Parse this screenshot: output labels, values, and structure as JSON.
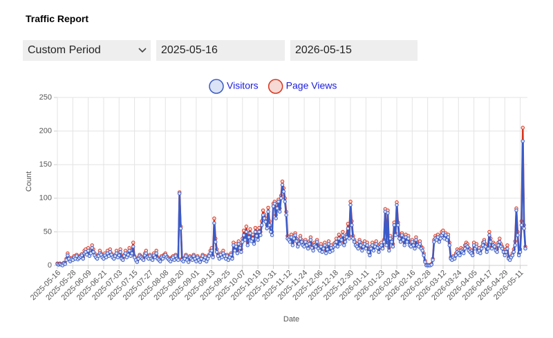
{
  "title": "Traffic Report",
  "form": {
    "period": "Custom Period",
    "start": "2025-05-16",
    "end": "2026-05-15"
  },
  "chart_data": {
    "type": "line",
    "x_label": "Date",
    "y_label": "Count",
    "ylim": [
      0,
      250
    ],
    "yticks": [
      0,
      50,
      100,
      150,
      200,
      250
    ],
    "grid": true,
    "legend": "top",
    "categories": [
      "2025-05-16",
      null,
      null,
      null,
      null,
      null,
      null,
      null,
      null,
      null,
      null,
      null,
      "2025-05-28",
      null,
      null,
      null,
      null,
      null,
      null,
      null,
      null,
      null,
      null,
      null,
      "2025-06-09",
      null,
      null,
      null,
      null,
      null,
      null,
      null,
      null,
      null,
      null,
      null,
      "2025-06-21",
      null,
      null,
      null,
      null,
      null,
      null,
      null,
      null,
      null,
      null,
      null,
      "2025-07-03",
      null,
      null,
      null,
      null,
      null,
      null,
      null,
      null,
      null,
      null,
      null,
      "2025-07-15",
      null,
      null,
      null,
      null,
      null,
      null,
      null,
      null,
      null,
      null,
      null,
      "2025-07-27",
      null,
      null,
      null,
      null,
      null,
      null,
      null,
      null,
      null,
      null,
      null,
      "2025-08-08",
      null,
      null,
      null,
      null,
      null,
      null,
      null,
      null,
      null,
      null,
      null,
      "2025-08-20",
      null,
      null,
      null,
      null,
      null,
      null,
      null,
      null,
      null,
      null,
      null,
      "2025-09-01",
      null,
      null,
      null,
      null,
      null,
      null,
      null,
      null,
      null,
      null,
      null,
      "2025-09-13",
      null,
      null,
      null,
      null,
      null,
      null,
      null,
      null,
      null,
      null,
      null,
      "2025-09-25",
      null,
      null,
      null,
      null,
      null,
      null,
      null,
      null,
      null,
      null,
      null,
      "2025-10-07",
      null,
      null,
      null,
      null,
      null,
      null,
      null,
      null,
      null,
      null,
      null,
      "2025-10-19",
      null,
      null,
      null,
      null,
      null,
      null,
      null,
      null,
      null,
      null,
      null,
      "2025-10-31",
      null,
      null,
      null,
      null,
      null,
      null,
      null,
      null,
      null,
      null,
      null,
      "2025-11-12",
      null,
      null,
      null,
      null,
      null,
      null,
      null,
      null,
      null,
      null,
      null,
      "2025-11-24",
      null,
      null,
      null,
      null,
      null,
      null,
      null,
      null,
      null,
      null,
      null,
      "2025-12-06",
      null,
      null,
      null,
      null,
      null,
      null,
      null,
      null,
      null,
      null,
      null,
      "2025-12-18",
      null,
      null,
      null,
      null,
      null,
      null,
      null,
      null,
      null,
      null,
      null,
      "2025-12-30",
      null,
      null,
      null,
      null,
      null,
      null,
      null,
      null,
      null,
      null,
      null,
      "2026-01-11",
      null,
      null,
      null,
      null,
      null,
      null,
      null,
      null,
      null,
      null,
      null,
      "2026-01-23",
      null,
      null,
      null,
      null,
      null,
      null,
      null,
      null,
      null,
      null,
      null,
      "2026-02-04",
      null,
      null,
      null,
      null,
      null,
      null,
      null,
      null,
      null,
      null,
      null,
      "2026-02-16",
      null,
      null,
      null,
      null,
      null,
      null,
      null,
      null,
      null,
      null,
      null,
      "2026-02-28",
      null,
      null,
      null,
      null,
      null,
      null,
      null,
      null,
      null,
      null,
      null,
      "2026-03-12",
      null,
      null,
      null,
      null,
      null,
      null,
      null,
      null,
      null,
      null,
      null,
      "2026-03-24",
      null,
      null,
      null,
      null,
      null,
      null,
      null,
      null,
      null,
      null,
      null,
      "2026-04-05",
      null,
      null,
      null,
      null,
      null,
      null,
      null,
      null,
      null,
      null,
      null,
      "2026-04-17",
      null,
      null,
      null,
      null,
      null,
      null,
      null,
      null,
      null,
      null,
      null,
      "2026-04-29",
      null,
      null,
      null,
      null,
      null,
      null,
      null,
      null,
      null,
      null,
      null,
      "2026-05-11",
      null,
      null,
      null,
      null
    ],
    "series": [
      {
        "name": "Page Views",
        "color": "#d9351f",
        "fill": "#f6d9d4",
        "values": [
          3,
          2,
          3,
          2,
          1,
          4,
          3,
          10,
          18,
          12,
          8,
          11,
          10,
          14,
          12,
          16,
          11,
          13,
          15,
          17,
          12,
          22,
          24,
          20,
          26,
          16,
          22,
          30,
          24,
          18,
          14,
          12,
          16,
          22,
          18,
          14,
          12,
          18,
          14,
          22,
          16,
          24,
          18,
          14,
          12,
          16,
          22,
          14,
          18,
          24,
          12,
          10,
          16,
          22,
          14,
          18,
          26,
          16,
          22,
          34,
          14,
          10,
          7,
          12,
          16,
          14,
          12,
          10,
          18,
          22,
          14,
          12,
          16,
          12,
          10,
          18,
          14,
          22,
          12,
          10,
          8,
          14,
          12,
          16,
          18,
          14,
          12,
          10,
          8,
          12,
          14,
          10,
          16,
          12,
          10,
          109,
          58,
          10,
          8,
          12,
          16,
          10,
          7,
          14,
          12,
          10,
          16,
          12,
          8,
          14,
          10,
          7,
          12,
          16,
          10,
          14,
          8,
          12,
          16,
          22,
          26,
          14,
          70,
          40,
          24,
          16,
          12,
          18,
          14,
          22,
          16,
          12,
          16,
          10,
          14,
          18,
          12,
          34,
          26,
          32,
          22,
          36,
          30,
          24,
          40,
          52,
          44,
          58,
          34,
          48,
          54,
          40,
          46,
          36,
          56,
          50,
          42,
          56,
          50,
          66,
          82,
          76,
          70,
          60,
          86,
          66,
          55,
          50,
          92,
          95,
          75,
          90,
          98,
          85,
          104,
          125,
          115,
          100,
          80,
          44,
          42,
          38,
          46,
          34,
          44,
          48,
          40,
          32,
          36,
          44,
          38,
          34,
          32,
          38,
          34,
          28,
          36,
          42,
          30,
          26,
          34,
          32,
          38,
          28,
          26,
          32,
          24,
          28,
          34,
          22,
          28,
          36,
          24,
          30,
          26,
          32,
          34,
          40,
          32,
          46,
          36,
          42,
          50,
          34,
          40,
          46,
          62,
          44,
          95,
          66,
          44,
          38,
          34,
          32,
          28,
          38,
          34,
          26,
          32,
          36,
          28,
          34,
          24,
          18,
          28,
          34,
          26,
          32,
          36,
          30,
          24,
          32,
          34,
          28,
          38,
          84,
          34,
          82,
          26,
          44,
          38,
          32,
          64,
          48,
          94,
          64,
          44,
          38,
          48,
          42,
          34,
          46,
          38,
          44,
          34,
          32,
          38,
          34,
          28,
          42,
          34,
          32,
          36,
          28,
          26,
          18,
          7,
          1,
          1,
          0,
          1,
          2,
          10,
          38,
          44,
          42,
          46,
          38,
          44,
          50,
          52,
          44,
          48,
          42,
          46,
          34,
          12,
          10,
          14,
          12,
          18,
          24,
          22,
          18,
          26,
          24,
          22,
          30,
          34,
          32,
          26,
          24,
          22,
          18,
          34,
          28,
          32,
          24,
          26,
          22,
          28,
          34,
          38,
          32,
          24,
          28,
          50,
          40,
          28,
          34,
          32,
          26,
          24,
          34,
          40,
          32,
          28,
          24,
          18,
          24,
          30,
          12,
          10,
          14,
          18,
          24,
          36,
          85,
          50,
          18,
          24,
          66,
          205,
          60,
          28
        ]
      },
      {
        "name": "Visitors",
        "color": "#3a5bc7",
        "fill": "#dbe3f6",
        "values": [
          2,
          1,
          2,
          1,
          0,
          3,
          2,
          8,
          15,
          10,
          6,
          9,
          8,
          12,
          10,
          14,
          9,
          11,
          13,
          15,
          10,
          18,
          20,
          16,
          22,
          14,
          18,
          26,
          20,
          15,
          12,
          10,
          14,
          18,
          16,
          12,
          10,
          15,
          12,
          18,
          14,
          20,
          16,
          12,
          10,
          14,
          18,
          12,
          15,
          20,
          10,
          8,
          14,
          18,
          12,
          16,
          22,
          14,
          18,
          28,
          12,
          8,
          5,
          10,
          14,
          12,
          10,
          8,
          15,
          18,
          12,
          10,
          14,
          10,
          8,
          15,
          12,
          18,
          10,
          8,
          6,
          12,
          10,
          14,
          16,
          12,
          10,
          8,
          6,
          10,
          12,
          8,
          14,
          10,
          8,
          107,
          55,
          8,
          6,
          10,
          14,
          8,
          5,
          12,
          10,
          8,
          14,
          10,
          6,
          12,
          8,
          5,
          10,
          14,
          8,
          12,
          6,
          10,
          14,
          18,
          22,
          12,
          63,
          35,
          20,
          14,
          10,
          16,
          12,
          18,
          14,
          10,
          14,
          8,
          12,
          16,
          10,
          30,
          22,
          28,
          18,
          32,
          26,
          20,
          35,
          45,
          38,
          50,
          30,
          42,
          48,
          36,
          40,
          32,
          50,
          44,
          38,
          50,
          45,
          60,
          75,
          70,
          65,
          55,
          80,
          60,
          50,
          45,
          88,
          92,
          70,
          85,
          95,
          80,
          100,
          120,
          110,
          95,
          75,
          40,
          38,
          35,
          42,
          30,
          40,
          45,
          36,
          28,
          32,
          40,
          35,
          30,
          28,
          35,
          30,
          25,
          32,
          38,
          26,
          22,
          30,
          28,
          35,
          25,
          22,
          28,
          20,
          25,
          30,
          18,
          24,
          32,
          20,
          26,
          22,
          28,
          30,
          35,
          28,
          40,
          32,
          38,
          45,
          30,
          35,
          42,
          55,
          40,
          90,
          60,
          40,
          35,
          30,
          28,
          25,
          35,
          30,
          22,
          28,
          32,
          25,
          30,
          20,
          15,
          25,
          30,
          22,
          28,
          32,
          26,
          20,
          28,
          30,
          25,
          35,
          80,
          30,
          78,
          22,
          40,
          35,
          28,
          60,
          45,
          90,
          60,
          40,
          35,
          45,
          38,
          30,
          42,
          35,
          40,
          30,
          28,
          35,
          30,
          25,
          38,
          30,
          28,
          32,
          25,
          22,
          15,
          5,
          0,
          0,
          0,
          0,
          1,
          8,
          35,
          40,
          38,
          42,
          35,
          40,
          45,
          48,
          40,
          45,
          38,
          42,
          30,
          10,
          8,
          12,
          10,
          15,
          20,
          18,
          15,
          22,
          20,
          18,
          25,
          30,
          28,
          22,
          20,
          18,
          15,
          30,
          25,
          28,
          20,
          22,
          18,
          25,
          30,
          35,
          28,
          20,
          25,
          45,
          35,
          25,
          30,
          28,
          22,
          20,
          30,
          35,
          28,
          25,
          20,
          15,
          20,
          25,
          10,
          8,
          12,
          15,
          20,
          30,
          82,
          45,
          15,
          20,
          60,
          185,
          55,
          25
        ]
      }
    ]
  }
}
